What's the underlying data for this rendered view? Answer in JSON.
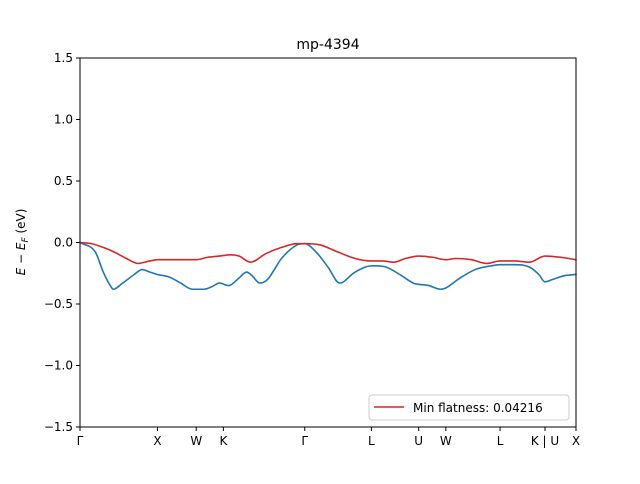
{
  "chart_data": {
    "type": "line",
    "title": "mp-4394",
    "ylabel": "E − E_F (eV)",
    "ylabel_parts": {
      "E1": "E",
      "minus": " − ",
      "E2": "E",
      "sub": "F",
      "unit": " (eV)"
    },
    "xlabel": "",
    "ylim": [
      -1.5,
      1.5
    ],
    "xlim": [
      0,
      6.4
    ],
    "y_ticks": [
      {
        "value": 1.5,
        "label": "1.5"
      },
      {
        "value": 1.0,
        "label": "1.0"
      },
      {
        "value": 0.5,
        "label": "0.5"
      },
      {
        "value": 0.0,
        "label": "0.0"
      },
      {
        "value": -0.5,
        "label": "−0.5"
      },
      {
        "value": -1.0,
        "label": "−1.0"
      },
      {
        "value": -1.5,
        "label": "−1.5"
      }
    ],
    "x_ticks": [
      {
        "value": 0.0,
        "label": "Γ"
      },
      {
        "value": 1.0,
        "label": "X"
      },
      {
        "value": 1.5,
        "label": "W"
      },
      {
        "value": 1.85,
        "label": "K"
      },
      {
        "value": 2.9,
        "label": "Γ"
      },
      {
        "value": 3.76,
        "label": "L"
      },
      {
        "value": 4.37,
        "label": "U"
      },
      {
        "value": 4.72,
        "label": "W"
      },
      {
        "value": 5.42,
        "label": "L"
      },
      {
        "value": 6.0,
        "label": "K | U"
      },
      {
        "value": 6.4,
        "label": "X"
      }
    ],
    "legend": {
      "position": "lower-right",
      "label": "Min flatness: 0.04216"
    },
    "grid": false,
    "series": [
      {
        "name": "",
        "color": "#1f77b4",
        "x": [
          0.0,
          0.2,
          0.3,
          0.4,
          0.43,
          0.55,
          0.7,
          0.8,
          0.9,
          1.0,
          1.15,
          1.3,
          1.45,
          1.6,
          1.7,
          1.8,
          1.92,
          2.05,
          2.15,
          2.22,
          2.32,
          2.42,
          2.6,
          2.8,
          2.9,
          3.05,
          3.2,
          3.35,
          3.55,
          3.76,
          3.95,
          4.15,
          4.3,
          4.37,
          4.5,
          4.65,
          4.72,
          4.9,
          5.1,
          5.3,
          5.42,
          5.6,
          5.8,
          5.92,
          6.0,
          6.1,
          6.25,
          6.4
        ],
        "y": [
          0.0,
          -0.08,
          -0.24,
          -0.36,
          -0.38,
          -0.33,
          -0.26,
          -0.22,
          -0.24,
          -0.26,
          -0.28,
          -0.33,
          -0.38,
          -0.38,
          -0.36,
          -0.33,
          -0.35,
          -0.29,
          -0.24,
          -0.27,
          -0.33,
          -0.3,
          -0.13,
          -0.02,
          -0.01,
          -0.08,
          -0.2,
          -0.33,
          -0.24,
          -0.19,
          -0.2,
          -0.27,
          -0.33,
          -0.34,
          -0.35,
          -0.38,
          -0.37,
          -0.29,
          -0.22,
          -0.19,
          -0.18,
          -0.18,
          -0.2,
          -0.26,
          -0.32,
          -0.3,
          -0.27,
          -0.26
        ]
      },
      {
        "name": "",
        "color": "#d62728",
        "x": [
          0.0,
          0.15,
          0.3,
          0.45,
          0.6,
          0.75,
          0.9,
          1.0,
          1.2,
          1.4,
          1.5,
          1.65,
          1.8,
          1.95,
          2.05,
          2.2,
          2.4,
          2.6,
          2.8,
          2.9,
          3.1,
          3.3,
          3.55,
          3.76,
          3.9,
          4.05,
          4.2,
          4.37,
          4.55,
          4.72,
          4.85,
          5.05,
          5.25,
          5.42,
          5.6,
          5.8,
          6.0,
          6.2,
          6.4
        ],
        "y": [
          0.0,
          -0.01,
          -0.04,
          -0.08,
          -0.13,
          -0.17,
          -0.15,
          -0.14,
          -0.14,
          -0.14,
          -0.14,
          -0.12,
          -0.11,
          -0.1,
          -0.11,
          -0.16,
          -0.09,
          -0.04,
          -0.01,
          -0.01,
          -0.02,
          -0.07,
          -0.13,
          -0.15,
          -0.15,
          -0.16,
          -0.13,
          -0.11,
          -0.12,
          -0.14,
          -0.13,
          -0.14,
          -0.17,
          -0.15,
          -0.15,
          -0.16,
          -0.11,
          -0.12,
          -0.14
        ]
      }
    ]
  }
}
